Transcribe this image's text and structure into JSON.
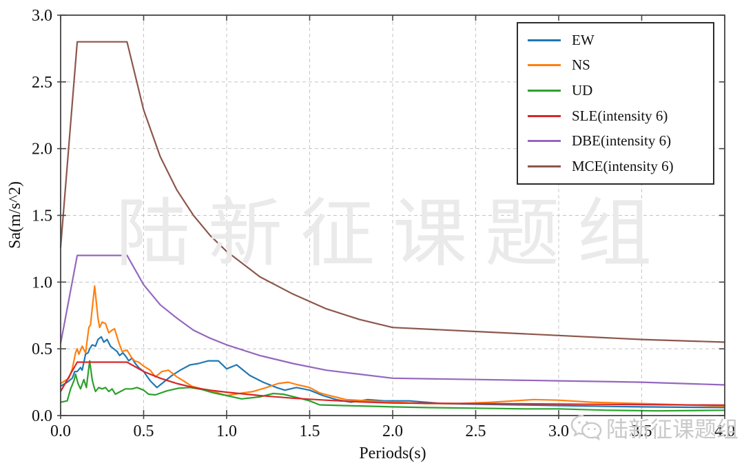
{
  "chart_data": {
    "type": "line",
    "title": "",
    "xlabel": "Periods(s)",
    "ylabel": "Sa(m/s^2)",
    "xlim": [
      0,
      4
    ],
    "ylim": [
      0,
      3
    ],
    "xticks": [
      "0.0",
      "0.5",
      "1.0",
      "1.5",
      "2.0",
      "2.5",
      "3.0",
      "3.5",
      "4.0"
    ],
    "yticks": [
      "0.0",
      "0.5",
      "1.0",
      "1.5",
      "2.0",
      "2.5",
      "3.0"
    ],
    "grid": true,
    "grid_style": "dashed",
    "legend_position": "upper right",
    "series": [
      {
        "name": "EW",
        "color": "#1f77b4",
        "points": [
          [
            0,
            0.22
          ],
          [
            0.04,
            0.25
          ],
          [
            0.07,
            0.28
          ],
          [
            0.085,
            0.33
          ],
          [
            0.1,
            0.33
          ],
          [
            0.12,
            0.36
          ],
          [
            0.13,
            0.34
          ],
          [
            0.15,
            0.46
          ],
          [
            0.165,
            0.47
          ],
          [
            0.175,
            0.5
          ],
          [
            0.19,
            0.53
          ],
          [
            0.21,
            0.52
          ],
          [
            0.225,
            0.57
          ],
          [
            0.245,
            0.59
          ],
          [
            0.26,
            0.55
          ],
          [
            0.28,
            0.57
          ],
          [
            0.3,
            0.52
          ],
          [
            0.32,
            0.5
          ],
          [
            0.34,
            0.48
          ],
          [
            0.355,
            0.45
          ],
          [
            0.375,
            0.47
          ],
          [
            0.395,
            0.44
          ],
          [
            0.41,
            0.41
          ],
          [
            0.43,
            0.43
          ],
          [
            0.45,
            0.39
          ],
          [
            0.47,
            0.36
          ],
          [
            0.5,
            0.33
          ],
          [
            0.54,
            0.26
          ],
          [
            0.58,
            0.21
          ],
          [
            0.62,
            0.25
          ],
          [
            0.67,
            0.3
          ],
          [
            0.72,
            0.34
          ],
          [
            0.78,
            0.38
          ],
          [
            0.83,
            0.39
          ],
          [
            0.89,
            0.41
          ],
          [
            0.95,
            0.41
          ],
          [
            1.0,
            0.35
          ],
          [
            1.06,
            0.38
          ],
          [
            1.14,
            0.3
          ],
          [
            1.22,
            0.25
          ],
          [
            1.3,
            0.21
          ],
          [
            1.35,
            0.19
          ],
          [
            1.42,
            0.21
          ],
          [
            1.5,
            0.19
          ],
          [
            1.58,
            0.15
          ],
          [
            1.66,
            0.12
          ],
          [
            1.75,
            0.1
          ],
          [
            1.85,
            0.12
          ],
          [
            1.95,
            0.11
          ],
          [
            2.1,
            0.11
          ],
          [
            2.3,
            0.09
          ],
          [
            2.5,
            0.085
          ],
          [
            2.75,
            0.08
          ],
          [
            3.0,
            0.075
          ],
          [
            3.5,
            0.065
          ],
          [
            4.0,
            0.06
          ]
        ]
      },
      {
        "name": "NS",
        "color": "#ff7f0e",
        "points": [
          [
            0,
            0.24
          ],
          [
            0.05,
            0.28
          ],
          [
            0.07,
            0.35
          ],
          [
            0.09,
            0.47
          ],
          [
            0.1,
            0.5
          ],
          [
            0.11,
            0.46
          ],
          [
            0.13,
            0.52
          ],
          [
            0.15,
            0.47
          ],
          [
            0.17,
            0.66
          ],
          [
            0.18,
            0.68
          ],
          [
            0.19,
            0.8
          ],
          [
            0.205,
            0.97
          ],
          [
            0.215,
            0.85
          ],
          [
            0.225,
            0.73
          ],
          [
            0.235,
            0.66
          ],
          [
            0.25,
            0.7
          ],
          [
            0.27,
            0.69
          ],
          [
            0.29,
            0.62
          ],
          [
            0.31,
            0.64
          ],
          [
            0.325,
            0.65
          ],
          [
            0.35,
            0.55
          ],
          [
            0.37,
            0.48
          ],
          [
            0.4,
            0.49
          ],
          [
            0.425,
            0.44
          ],
          [
            0.445,
            0.41
          ],
          [
            0.47,
            0.4
          ],
          [
            0.5,
            0.37
          ],
          [
            0.54,
            0.34
          ],
          [
            0.57,
            0.29
          ],
          [
            0.61,
            0.33
          ],
          [
            0.65,
            0.34
          ],
          [
            0.7,
            0.29
          ],
          [
            0.74,
            0.26
          ],
          [
            0.79,
            0.22
          ],
          [
            0.85,
            0.2
          ],
          [
            0.92,
            0.18
          ],
          [
            1.0,
            0.15
          ],
          [
            1.05,
            0.16
          ],
          [
            1.1,
            0.17
          ],
          [
            1.16,
            0.18
          ],
          [
            1.24,
            0.21
          ],
          [
            1.31,
            0.24
          ],
          [
            1.37,
            0.25
          ],
          [
            1.43,
            0.23
          ],
          [
            1.5,
            0.21
          ],
          [
            1.56,
            0.17
          ],
          [
            1.62,
            0.15
          ],
          [
            1.72,
            0.12
          ],
          [
            1.85,
            0.11
          ],
          [
            2.0,
            0.1
          ],
          [
            2.2,
            0.09
          ],
          [
            2.4,
            0.09
          ],
          [
            2.6,
            0.1
          ],
          [
            2.85,
            0.12
          ],
          [
            3.0,
            0.115
          ],
          [
            3.2,
            0.1
          ],
          [
            3.5,
            0.09
          ],
          [
            3.75,
            0.08
          ],
          [
            4.0,
            0.07
          ]
        ]
      },
      {
        "name": "UD",
        "color": "#2ca02c",
        "points": [
          [
            0,
            0.1
          ],
          [
            0.04,
            0.11
          ],
          [
            0.06,
            0.2
          ],
          [
            0.08,
            0.26
          ],
          [
            0.09,
            0.31
          ],
          [
            0.105,
            0.24
          ],
          [
            0.12,
            0.2
          ],
          [
            0.14,
            0.27
          ],
          [
            0.155,
            0.21
          ],
          [
            0.175,
            0.41
          ],
          [
            0.19,
            0.27
          ],
          [
            0.2,
            0.22
          ],
          [
            0.21,
            0.18
          ],
          [
            0.23,
            0.21
          ],
          [
            0.25,
            0.2
          ],
          [
            0.27,
            0.21
          ],
          [
            0.29,
            0.18
          ],
          [
            0.31,
            0.2
          ],
          [
            0.33,
            0.16
          ],
          [
            0.36,
            0.18
          ],
          [
            0.39,
            0.2
          ],
          [
            0.43,
            0.2
          ],
          [
            0.46,
            0.21
          ],
          [
            0.5,
            0.19
          ],
          [
            0.53,
            0.16
          ],
          [
            0.57,
            0.155
          ],
          [
            0.64,
            0.185
          ],
          [
            0.71,
            0.205
          ],
          [
            0.78,
            0.21
          ],
          [
            0.85,
            0.195
          ],
          [
            0.92,
            0.17
          ],
          [
            1.0,
            0.15
          ],
          [
            1.09,
            0.125
          ],
          [
            1.2,
            0.14
          ],
          [
            1.28,
            0.165
          ],
          [
            1.34,
            0.16
          ],
          [
            1.44,
            0.13
          ],
          [
            1.5,
            0.11
          ],
          [
            1.56,
            0.08
          ],
          [
            1.7,
            0.075
          ],
          [
            1.85,
            0.07
          ],
          [
            2.0,
            0.065
          ],
          [
            2.2,
            0.06
          ],
          [
            2.5,
            0.055
          ],
          [
            2.8,
            0.05
          ],
          [
            3.0,
            0.05
          ],
          [
            3.3,
            0.04
          ],
          [
            3.6,
            0.035
          ],
          [
            4.0,
            0.04
          ]
        ]
      },
      {
        "name": "SLE(intensity 6)",
        "color": "#d62728",
        "points": [
          [
            0,
            0.18
          ],
          [
            0.1,
            0.4
          ],
          [
            0.4,
            0.4
          ],
          [
            0.5,
            0.33
          ],
          [
            0.6,
            0.28
          ],
          [
            0.7,
            0.24
          ],
          [
            0.8,
            0.21
          ],
          [
            0.9,
            0.19
          ],
          [
            1.0,
            0.175
          ],
          [
            1.2,
            0.15
          ],
          [
            1.4,
            0.13
          ],
          [
            1.6,
            0.115
          ],
          [
            1.8,
            0.103
          ],
          [
            2.0,
            0.094
          ],
          [
            2.5,
            0.09
          ],
          [
            3.0,
            0.086
          ],
          [
            3.5,
            0.082
          ],
          [
            4.0,
            0.078
          ]
        ]
      },
      {
        "name": "DBE(intensity 6)",
        "color": "#9467bd",
        "points": [
          [
            0,
            0.54
          ],
          [
            0.1,
            1.2
          ],
          [
            0.4,
            1.2
          ],
          [
            0.5,
            0.98
          ],
          [
            0.6,
            0.83
          ],
          [
            0.7,
            0.73
          ],
          [
            0.8,
            0.64
          ],
          [
            0.9,
            0.58
          ],
          [
            1.0,
            0.53
          ],
          [
            1.2,
            0.45
          ],
          [
            1.4,
            0.39
          ],
          [
            1.6,
            0.34
          ],
          [
            1.8,
            0.31
          ],
          [
            2.0,
            0.28
          ],
          [
            2.5,
            0.27
          ],
          [
            3.0,
            0.26
          ],
          [
            3.5,
            0.25
          ],
          [
            4.0,
            0.23
          ]
        ]
      },
      {
        "name": "MCE(intensity 6)",
        "color": "#8c564b",
        "points": [
          [
            0,
            1.26
          ],
          [
            0.1,
            2.8
          ],
          [
            0.4,
            2.8
          ],
          [
            0.5,
            2.29
          ],
          [
            0.6,
            1.94
          ],
          [
            0.7,
            1.69
          ],
          [
            0.8,
            1.5
          ],
          [
            0.9,
            1.35
          ],
          [
            1.0,
            1.23
          ],
          [
            1.2,
            1.04
          ],
          [
            1.4,
            0.91
          ],
          [
            1.6,
            0.8
          ],
          [
            1.8,
            0.72
          ],
          [
            2.0,
            0.66
          ],
          [
            2.5,
            0.63
          ],
          [
            3.0,
            0.6
          ],
          [
            3.5,
            0.57
          ],
          [
            4.0,
            0.55
          ]
        ]
      }
    ]
  },
  "watermarks": {
    "center": "陆新征课题组",
    "corner": "陆新征课题组",
    "corner_icon": "wechat-icon"
  },
  "style": {
    "frame_color": "#444444",
    "grid_color": "#c4c4c4",
    "tick_label_color": "#111111"
  }
}
